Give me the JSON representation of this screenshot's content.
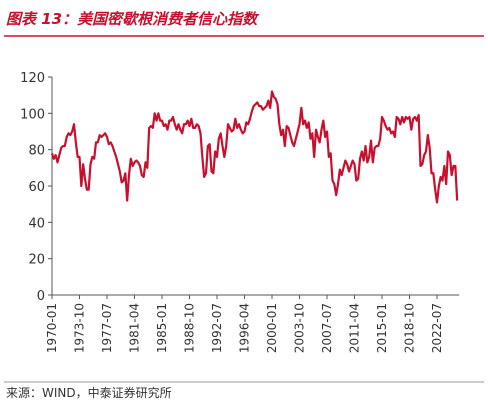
{
  "chart_data": {
    "type": "line",
    "title": "图表 13：美国密歇根消费者信心指数",
    "source": "来源：WIND，中泰证券研究所",
    "categories": [
      "1970-01",
      null,
      null,
      null,
      null,
      null,
      null,
      null,
      null,
      null,
      null,
      null,
      null,
      null,
      null,
      "1973-10",
      null,
      null,
      null,
      null,
      null,
      null,
      null,
      null,
      null,
      null,
      null,
      null,
      null,
      null,
      "1977-07",
      null,
      null,
      null,
      null,
      null,
      null,
      null,
      null,
      null,
      null,
      null,
      null,
      null,
      null,
      "1981-04",
      null,
      null,
      null,
      null,
      null,
      null,
      null,
      null,
      null,
      null,
      null,
      null,
      null,
      null,
      "1985-01",
      null,
      null,
      null,
      null,
      null,
      null,
      null,
      null,
      null,
      null,
      null,
      null,
      null,
      null,
      "1988-10",
      null,
      null,
      null,
      null,
      null,
      null,
      null,
      null,
      null,
      null,
      null,
      null,
      null,
      null,
      "1992-07",
      null,
      null,
      null,
      null,
      null,
      null,
      null,
      null,
      null,
      null,
      null,
      null,
      null,
      null,
      "1996-04",
      null,
      null,
      null,
      null,
      null,
      null,
      null,
      null,
      null,
      null,
      null,
      null,
      null,
      null,
      "2000-01",
      null,
      null,
      null,
      null,
      null,
      null,
      null,
      null,
      null,
      null,
      null,
      null,
      null,
      null,
      "2003-10",
      null,
      null,
      null,
      null,
      null,
      null,
      null,
      null,
      null,
      null,
      null,
      null,
      null,
      null,
      "2007-07",
      null,
      null,
      null,
      null,
      null,
      null,
      null,
      null,
      null,
      null,
      null,
      null,
      null,
      null,
      "2011-04",
      null,
      null,
      null,
      null,
      null,
      null,
      null,
      null,
      null,
      null,
      null,
      null,
      null,
      null,
      "2015-01",
      null,
      null,
      null,
      null,
      null,
      null,
      null,
      null,
      null,
      null,
      null,
      null,
      null,
      null,
      "2018-10",
      null,
      null,
      null,
      null,
      null,
      null,
      null,
      null,
      null,
      null,
      null,
      null,
      null,
      null,
      "2022-07",
      null,
      null,
      null,
      null,
      null,
      null,
      null,
      null,
      null,
      null,
      null
    ],
    "series": [
      {
        "color": "#c8102e",
        "values": [
          78,
          75,
          77,
          73,
          77,
          81,
          82,
          82,
          87,
          89,
          88,
          90,
          94,
          84,
          76,
          76,
          60,
          72,
          64,
          58,
          58,
          72,
          76,
          75,
          84,
          84,
          88,
          87,
          88,
          89,
          87,
          83,
          84,
          82,
          79,
          76,
          72,
          68,
          62,
          63,
          67,
          52,
          66,
          75,
          71,
          73,
          74,
          73,
          71,
          66,
          65,
          73,
          70,
          92,
          93,
          92,
          100,
          96,
          100,
          96,
          96,
          93,
          94,
          91,
          96,
          96,
          98,
          94,
          91,
          94,
          91,
          89,
          94,
          94,
          96,
          93,
          97,
          92,
          92,
          94,
          93,
          89,
          76,
          65,
          67,
          82,
          83,
          68,
          67,
          79,
          76,
          86,
          89,
          82,
          76,
          82,
          94,
          92,
          90,
          91,
          97,
          92,
          94,
          91,
          89,
          90,
          95,
          94,
          97,
          101,
          104,
          105,
          106,
          104,
          104,
          102,
          103,
          104,
          107,
          103,
          112,
          109,
          108,
          105,
          94,
          88,
          91,
          82,
          93,
          92,
          88,
          84,
          82,
          86,
          90,
          94,
          103,
          94,
          96,
          92,
          95,
          86,
          89,
          76,
          91,
          87,
          84,
          91,
          96,
          87,
          90,
          76,
          78,
          63,
          61,
          55,
          61,
          69,
          66,
          70,
          74,
          72,
          68,
          71,
          74,
          72,
          63,
          64,
          75,
          79,
          74,
          82,
          73,
          76,
          85,
          73,
          81,
          82,
          82,
          86,
          98,
          96,
          93,
          91,
          92,
          89,
          90,
          87,
          98,
          97,
          94,
          98,
          95,
          98,
          97,
          98,
          91,
          97,
          98,
          96,
          99,
          71,
          72,
          77,
          79,
          88,
          81,
          67,
          67,
          58,
          51,
          60,
          65,
          63,
          71,
          61,
          79,
          77,
          66,
          71,
          71,
          52
        ]
      }
    ],
    "ylim": [
      0,
      120
    ],
    "yticks": [
      0,
      20,
      40,
      60,
      80,
      100,
      120
    ]
  }
}
